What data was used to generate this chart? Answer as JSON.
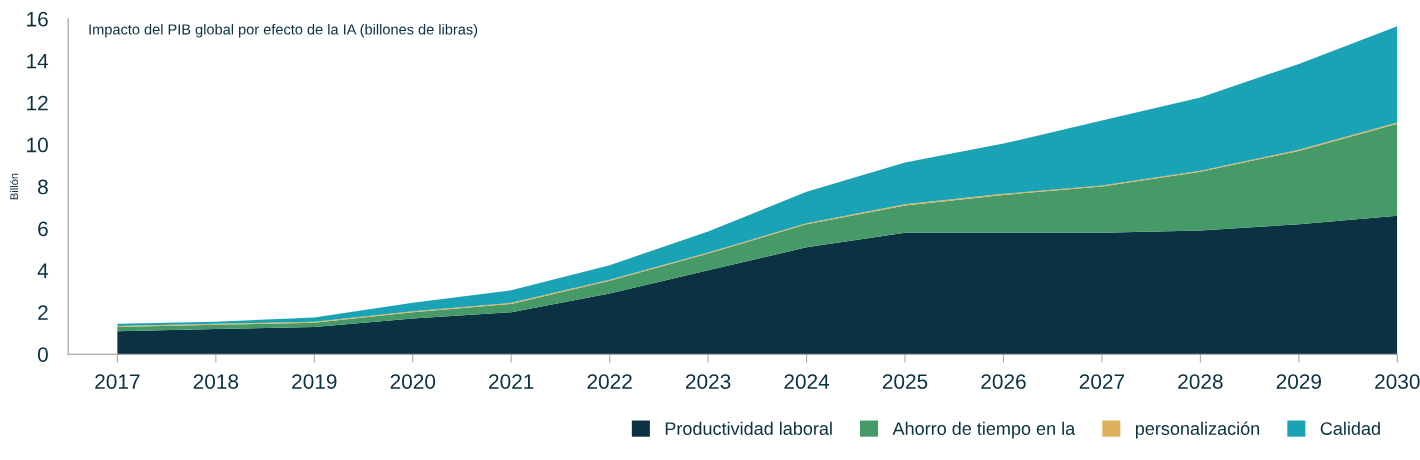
{
  "chart_data": {
    "type": "area",
    "stacked": true,
    "title": "Impacto del PIB global por efecto de la IA (billones de libras)",
    "ylabel": "Billón",
    "categories": [
      "2017",
      "2018",
      "2019",
      "2020",
      "2021",
      "2022",
      "2023",
      "2024",
      "2025",
      "2026",
      "2027",
      "2028",
      "2029",
      "2030"
    ],
    "series": [
      {
        "name": "Productividad laboral",
        "color": "#0b3242",
        "values": [
          1.1,
          1.2,
          1.3,
          1.7,
          2.0,
          2.9,
          4.0,
          5.1,
          5.8,
          5.8,
          5.8,
          5.9,
          6.2,
          6.6
        ]
      },
      {
        "name": "Ahorro de tiempo en la",
        "color": "#459a68",
        "values": [
          0.2,
          0.2,
          0.2,
          0.3,
          0.4,
          0.6,
          0.8,
          1.1,
          1.3,
          1.8,
          2.2,
          2.8,
          3.5,
          4.4
        ]
      },
      {
        "name": "personalización",
        "color": "#e0b05e",
        "values": [
          0.05,
          0.05,
          0.05,
          0.05,
          0.05,
          0.05,
          0.05,
          0.05,
          0.05,
          0.05,
          0.05,
          0.05,
          0.05,
          0.05
        ]
      },
      {
        "name": "Calidad",
        "color": "#1aa3b4",
        "values": [
          0.1,
          0.1,
          0.2,
          0.4,
          0.6,
          0.7,
          1.0,
          1.5,
          2.0,
          2.4,
          3.1,
          3.5,
          4.1,
          4.6
        ]
      }
    ],
    "ylim": [
      0,
      16
    ],
    "yticks": [
      0,
      2,
      4,
      6,
      8,
      10,
      12,
      14,
      16
    ],
    "grid": false,
    "legend": "bottom right"
  }
}
